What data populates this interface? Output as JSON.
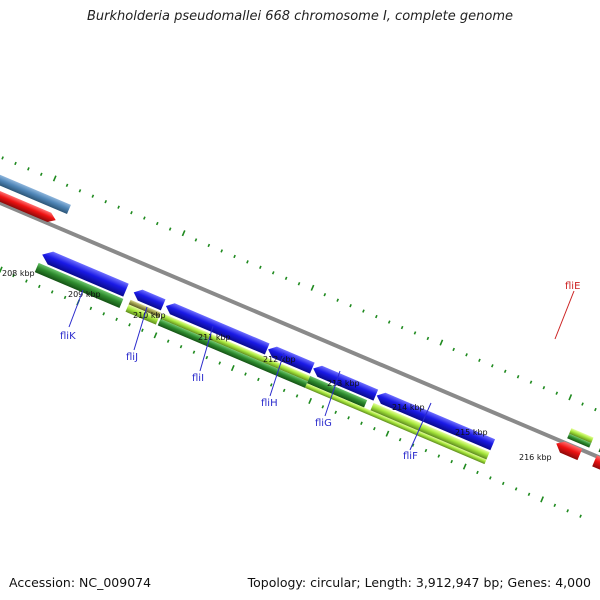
{
  "title": "Burkholderia pseudomallei 668 chromosome I, complete genome",
  "footer": {
    "accession": "Accession: NC_009074",
    "summary": "Topology: circular; Length: 3,912,947 bp; Genes: 4,000"
  },
  "scale_labels": [
    "208 kbp",
    "209 kbp",
    "210 kbp",
    "211 kbp",
    "212 kbp",
    "213 kbp",
    "214 kbp",
    "215 kbp",
    "216 kbp"
  ],
  "gene_labels": [
    {
      "text": "fliK",
      "color": "#2a2acc"
    },
    {
      "text": "fliJ",
      "color": "#2a2acc"
    },
    {
      "text": "fliI",
      "color": "#2a2acc"
    },
    {
      "text": "fliH",
      "color": "#2a2acc"
    },
    {
      "text": "fliG",
      "color": "#2a2acc"
    },
    {
      "text": "fliF",
      "color": "#2a2acc"
    },
    {
      "text": "fliE",
      "color": "#cc2222"
    }
  ],
  "colors": {
    "backbone": "#8a8a8a",
    "ticks": "#1f8a1f",
    "blue_feature": "#1a1ae6",
    "red_feature": "#ee1111",
    "steel_feature": "#4f86b8",
    "dark_green_feature": "#2e8b2e",
    "light_green_feature": "#a6e63c",
    "olive_feature": "#9a9a4a"
  }
}
